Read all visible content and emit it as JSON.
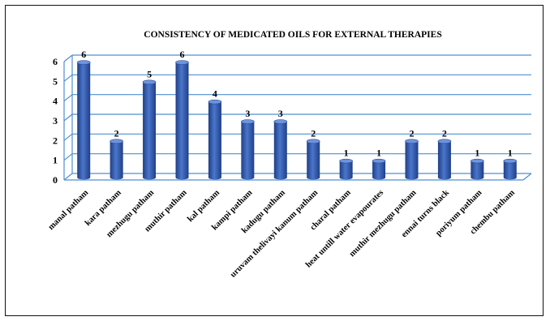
{
  "chart_data": {
    "type": "bar",
    "title": "CONSISTENCY OF MEDICATED OILS FOR EXTERNAL  THERAPIES",
    "xlabel": "",
    "ylabel": "",
    "ylim": [
      0,
      6
    ],
    "yticks": [
      "0",
      "1",
      "2",
      "3",
      "4",
      "5",
      "6"
    ],
    "grid": true,
    "style": "3d-cylinder",
    "bar_color": "#3a63b8",
    "grid_color": "#4f8fd0",
    "categories": [
      "manal patham",
      "kara patham",
      "mezhugu patham",
      "muthir patham",
      "kal patham",
      "kampi patham",
      "kadugu patham",
      "uruvam thelivayi kanum patham",
      "charal patham",
      "heat untill water evapourates",
      "muthir mezhugu patham",
      "ennai turns black",
      "poriyum patham",
      "chembu patham"
    ],
    "values": [
      6,
      2,
      5,
      6,
      4,
      3,
      3,
      2,
      1,
      1,
      2,
      2,
      1,
      1
    ],
    "data_labels": [
      "6",
      "2",
      "5",
      "6",
      "4",
      "3",
      "3",
      "2",
      "1",
      "1",
      "2",
      "2",
      "1",
      "1"
    ]
  }
}
